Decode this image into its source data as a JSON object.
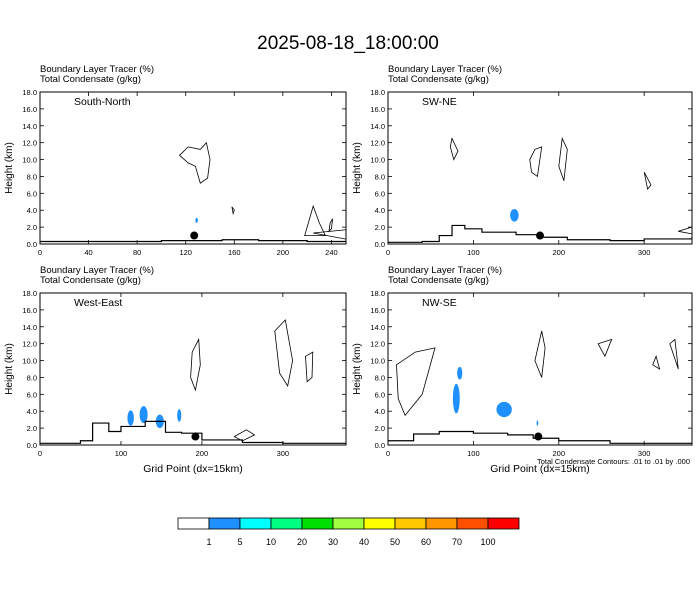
{
  "title": "2025-08-18_18:00:00",
  "footer_note": "Total Condensate Contours: .01 to .01 by .000",
  "colorbar": {
    "colors": [
      "#ffffff",
      "#1e90ff",
      "#00ffff",
      "#00ff80",
      "#00e000",
      "#a0ff40",
      "#ffff00",
      "#ffc800",
      "#ff9600",
      "#ff5000",
      "#ff0000"
    ],
    "labels": [
      "1",
      "5",
      "10",
      "20",
      "30",
      "40",
      "50",
      "60",
      "70",
      "100"
    ]
  },
  "chart_data": [
    {
      "type": "heatmap",
      "label1": "Boundary Layer Tracer   (%)",
      "label2": "Total Condensate   (g/kg)",
      "panel_title": "South-North",
      "xlabel": "",
      "ylabel": "Height (km)",
      "xlim": [
        0,
        252
      ],
      "ylim": [
        0,
        18
      ],
      "xticks": [
        0,
        40,
        80,
        120,
        160,
        200,
        240
      ],
      "yticks": [
        "0.0",
        "2.0",
        "4.0",
        "6.0",
        "8.0",
        "10.0",
        "12.0",
        "14.0",
        "16.0",
        "18.0"
      ],
      "terrain": [
        [
          0,
          0.3
        ],
        [
          50,
          0.3
        ],
        [
          100,
          0.4
        ],
        [
          150,
          0.5
        ],
        [
          180,
          0.4
        ],
        [
          220,
          0.3
        ],
        [
          252,
          0.2
        ]
      ],
      "marker": [
        127,
        1.0
      ],
      "tracer_blobs": [
        [
          129,
          2.8,
          2,
          0.6
        ]
      ],
      "cloud_contours": [
        [
          [
            115,
            10.5
          ],
          [
            122,
            11.5
          ],
          [
            132,
            11.2
          ],
          [
            137,
            12.0
          ],
          [
            140,
            10.0
          ],
          [
            138,
            7.8
          ],
          [
            132,
            7.2
          ],
          [
            128,
            9.2
          ],
          [
            122,
            9.6
          ]
        ],
        [
          [
            158,
            4.4
          ],
          [
            159,
            3.6
          ],
          [
            160,
            4.0
          ]
        ],
        [
          [
            225,
            1.3
          ],
          [
            260,
            1.8
          ],
          [
            280,
            1.2
          ],
          [
            255,
            0.5
          ]
        ],
        [
          [
            218,
            1.0
          ],
          [
            225,
            4.5
          ],
          [
            230,
            2.5
          ],
          [
            235,
            1.0
          ]
        ],
        [
          [
            238,
            1.5
          ],
          [
            239,
            2.5
          ],
          [
            241,
            3.0
          ],
          [
            240,
            1.8
          ]
        ]
      ]
    },
    {
      "type": "heatmap",
      "label1": "Boundary Layer Tracer   (%)",
      "label2": "Total Condensate   (g/kg)",
      "panel_title": "SW-NE",
      "xlabel": "",
      "ylabel": "Height (km)",
      "xlim": [
        0,
        356
      ],
      "ylim": [
        0,
        18
      ],
      "xticks": [
        0,
        100,
        200,
        300
      ],
      "yticks": [
        "0.0",
        "2.0",
        "4.0",
        "6.0",
        "8.0",
        "10.0",
        "12.0",
        "14.0",
        "16.0",
        "18.0"
      ],
      "terrain": [
        [
          0,
          0.2
        ],
        [
          40,
          0.3
        ],
        [
          60,
          1.0
        ],
        [
          75,
          2.2
        ],
        [
          90,
          1.8
        ],
        [
          110,
          1.4
        ],
        [
          150,
          1.1
        ],
        [
          180,
          0.8
        ],
        [
          210,
          0.5
        ],
        [
          260,
          0.4
        ],
        [
          300,
          0.6
        ],
        [
          356,
          0.9
        ]
      ],
      "marker": [
        178,
        1.0
      ],
      "tracer_blobs": [
        [
          148,
          3.4,
          10,
          1.5
        ]
      ],
      "cloud_contours": [
        [
          [
            75,
            12.5
          ],
          [
            82,
            11.0
          ],
          [
            77,
            10.0
          ],
          [
            73,
            11.5
          ]
        ],
        [
          [
            166,
            10.0
          ],
          [
            172,
            11.2
          ],
          [
            180,
            11.5
          ],
          [
            175,
            8.0
          ],
          [
            168,
            8.5
          ]
        ],
        [
          [
            204,
            12.5
          ],
          [
            210,
            11.2
          ],
          [
            206,
            7.5
          ],
          [
            200,
            9.2
          ]
        ],
        [
          [
            300,
            8.5
          ],
          [
            308,
            7.0
          ],
          [
            304,
            6.5
          ]
        ],
        [
          [
            340,
            1.5
          ],
          [
            356,
            2.0
          ],
          [
            356,
            1.2
          ]
        ]
      ]
    },
    {
      "type": "heatmap",
      "label1": "Boundary Layer Tracer   (%)",
      "label2": "Total Condensate   (g/kg)",
      "panel_title": "West-East",
      "xlabel": "Grid Point (dx=15km)",
      "ylabel": "Height (km)",
      "xlim": [
        0,
        378
      ],
      "ylim": [
        0,
        18
      ],
      "xticks": [
        0,
        100,
        200,
        300
      ],
      "yticks": [
        "0.0",
        "2.0",
        "4.0",
        "6.0",
        "8.0",
        "10.0",
        "12.0",
        "14.0",
        "16.0",
        "18.0"
      ],
      "terrain": [
        [
          0,
          0.2
        ],
        [
          50,
          0.5
        ],
        [
          65,
          2.6
        ],
        [
          85,
          1.6
        ],
        [
          100,
          2.2
        ],
        [
          130,
          2.8
        ],
        [
          155,
          1.5
        ],
        [
          175,
          1.4
        ],
        [
          200,
          0.6
        ],
        [
          250,
          0.3
        ],
        [
          300,
          0.2
        ],
        [
          378,
          0.2
        ]
      ],
      "marker": [
        192,
        1.0
      ],
      "tracer_blobs": [
        [
          112,
          3.2,
          8,
          1.8
        ],
        [
          128,
          3.6,
          10,
          2.0
        ],
        [
          148,
          2.8,
          10,
          1.6
        ],
        [
          172,
          3.5,
          5,
          1.5
        ]
      ],
      "cloud_contours": [
        [
          [
            188,
            11.0
          ],
          [
            196,
            12.5
          ],
          [
            198,
            9.5
          ],
          [
            192,
            6.5
          ],
          [
            186,
            8.0
          ]
        ],
        [
          [
            290,
            13.5
          ],
          [
            303,
            14.8
          ],
          [
            312,
            10.0
          ],
          [
            306,
            7.0
          ],
          [
            296,
            8.5
          ]
        ],
        [
          [
            328,
            10.5
          ],
          [
            337,
            11.0
          ],
          [
            336,
            8.0
          ],
          [
            330,
            7.5
          ]
        ],
        [
          [
            240,
            1.0
          ],
          [
            255,
            1.8
          ],
          [
            265,
            1.2
          ],
          [
            250,
            0.5
          ]
        ]
      ]
    },
    {
      "type": "heatmap",
      "label1": "Boundary Layer Tracer   (%)",
      "label2": "Total Condensate   (g/kg)",
      "panel_title": "NW-SE",
      "xlabel": "Grid Point (dx=15km)",
      "ylabel": "Height (km)",
      "xlim": [
        0,
        356
      ],
      "ylim": [
        0,
        18
      ],
      "xticks": [
        0,
        100,
        200,
        300
      ],
      "yticks": [
        "0.0",
        "2.0",
        "4.0",
        "6.0",
        "8.0",
        "10.0",
        "12.0",
        "14.0",
        "16.0",
        "18.0"
      ],
      "terrain": [
        [
          0,
          0.5
        ],
        [
          30,
          1.3
        ],
        [
          60,
          1.6
        ],
        [
          100,
          1.4
        ],
        [
          140,
          1.2
        ],
        [
          170,
          0.8
        ],
        [
          200,
          0.5
        ],
        [
          260,
          0.2
        ],
        [
          356,
          0.2
        ]
      ],
      "marker": [
        176,
        1.0
      ],
      "tracer_blobs": [
        [
          80,
          5.5,
          8,
          3.5
        ],
        [
          84,
          8.5,
          6,
          1.5
        ],
        [
          136,
          4.2,
          18,
          1.8
        ],
        [
          175,
          2.6,
          2,
          0.6
        ]
      ],
      "cloud_contours": [
        [
          [
            10,
            9.5
          ],
          [
            32,
            11.0
          ],
          [
            55,
            11.5
          ],
          [
            40,
            6.0
          ],
          [
            20,
            3.5
          ],
          [
            12,
            5.5
          ]
        ],
        [
          [
            172,
            10.0
          ],
          [
            180,
            13.5
          ],
          [
            184,
            11.5
          ],
          [
            180,
            8.0
          ]
        ],
        [
          [
            246,
            12.0
          ],
          [
            262,
            12.5
          ],
          [
            254,
            10.5
          ]
        ],
        [
          [
            330,
            12.0
          ],
          [
            340,
            9.0
          ],
          [
            336,
            12.5
          ]
        ],
        [
          [
            310,
            9.5
          ],
          [
            318,
            9.0
          ],
          [
            314,
            10.5
          ]
        ]
      ]
    }
  ]
}
